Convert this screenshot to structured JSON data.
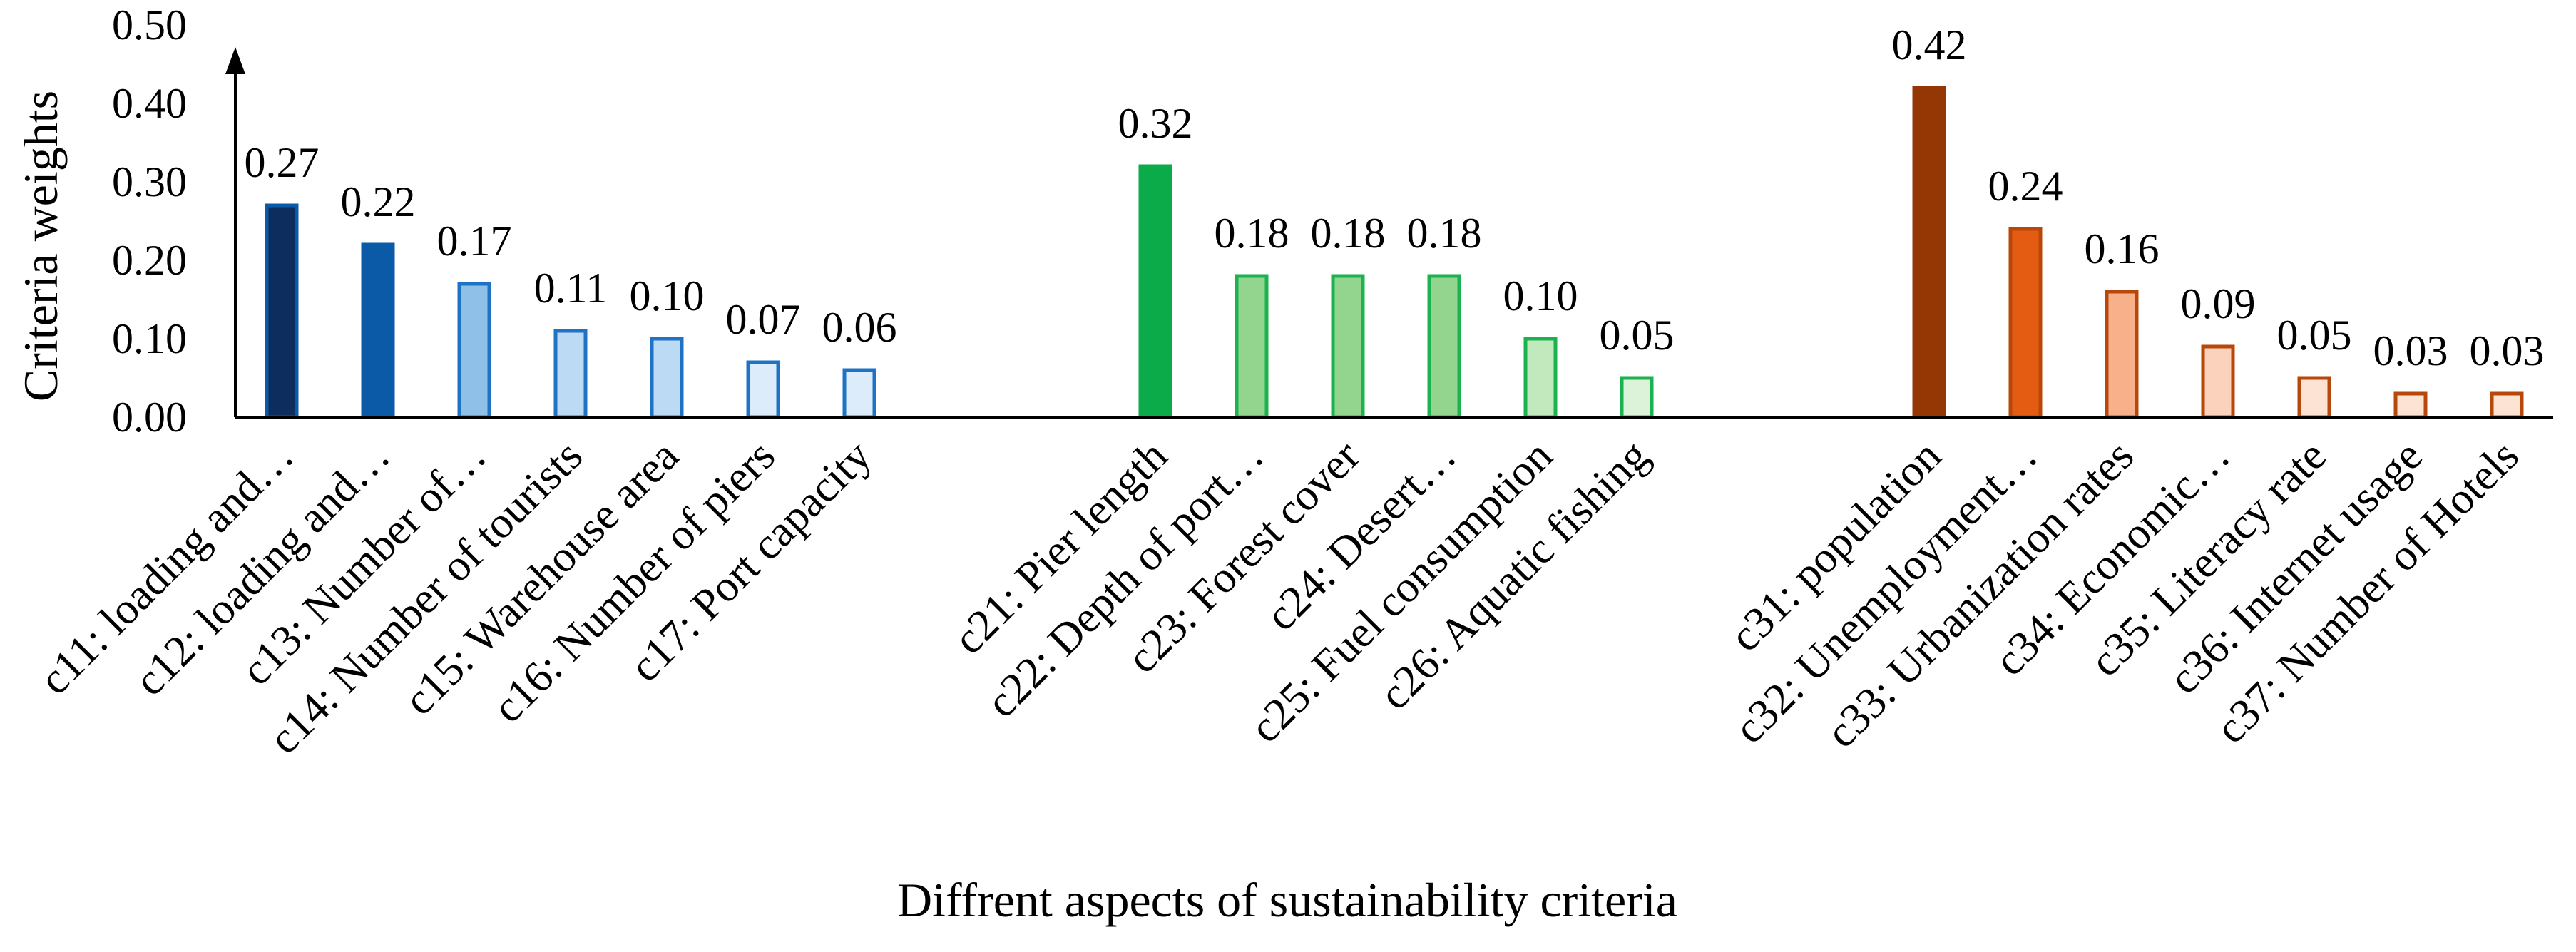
{
  "chart_data": {
    "type": "bar",
    "title": "",
    "xlabel": "Diffrent aspects of sustainability criteria",
    "ylabel": "Criteria weights",
    "ylim": [
      0,
      0.5
    ],
    "yticks": [
      "0.00",
      "0.10",
      "0.20",
      "0.30",
      "0.40",
      "0.50"
    ],
    "grid": false,
    "legend": "none",
    "groups": [
      {
        "name": "group-1",
        "categories": [
          "c11: loading and…",
          "c12: loading and…",
          "c13: Number of…",
          "c14: Number of tourists",
          "c15: Warehouse area",
          "c16: Number of piers",
          "c17: Port capacity"
        ],
        "values": [
          0.27,
          0.22,
          0.17,
          0.11,
          0.1,
          0.07,
          0.06
        ],
        "labels": [
          "0.27",
          "0.22",
          "0.17",
          "0.11",
          "0.10",
          "0.07",
          "0.06"
        ],
        "fills": [
          "#0d2d5e",
          "#0a5aa8",
          "#8fc0e8",
          "#bcdaf3",
          "#bcdaf3",
          "#dcecfa",
          "#dcecfa"
        ],
        "strokes": [
          "#0a5aa8",
          "#0a5aa8",
          "#1f73c4",
          "#1f73c4",
          "#1f73c4",
          "#1f73c4",
          "#1f73c4"
        ]
      },
      {
        "name": "group-2",
        "categories": [
          "c21: Pier length",
          "c22: Depth of port…",
          "c23: Forest cover",
          "c24: Desert…",
          "c25: Fuel consumption",
          "c26: Aquatic fishing"
        ],
        "values": [
          0.32,
          0.18,
          0.18,
          0.18,
          0.1,
          0.05
        ],
        "labels": [
          "0.32",
          "0.18",
          "0.18",
          "0.18",
          "0.10",
          "0.05"
        ],
        "fills": [
          "#0bab4a",
          "#93d48e",
          "#93d48e",
          "#93d48e",
          "#c2e8be",
          "#dcf3da"
        ],
        "strokes": [
          "#0bab4a",
          "#1ab34f",
          "#1ab34f",
          "#1ab34f",
          "#1ab34f",
          "#1ab34f"
        ]
      },
      {
        "name": "group-3",
        "categories": [
          "c31: population",
          "c32: Unemployment…",
          "c33: Urbanization rates",
          "c34: Economic…",
          "c35: Literacy rate",
          "c36: Internet usage",
          "c37: Number of Hotels"
        ],
        "values": [
          0.42,
          0.24,
          0.16,
          0.09,
          0.05,
          0.03,
          0.03
        ],
        "labels": [
          "0.42",
          "0.24",
          "0.16",
          "0.09",
          "0.05",
          "0.03",
          "0.03"
        ],
        "fills": [
          "#943705",
          "#e45c12",
          "#f7b08a",
          "#fbd2bb",
          "#fde3d3",
          "#fde3d3",
          "#fde3d3"
        ],
        "strokes": [
          "#943705",
          "#b8470a",
          "#b8470a",
          "#b8470a",
          "#b8470a",
          "#b8470a",
          "#b8470a"
        ]
      }
    ]
  }
}
